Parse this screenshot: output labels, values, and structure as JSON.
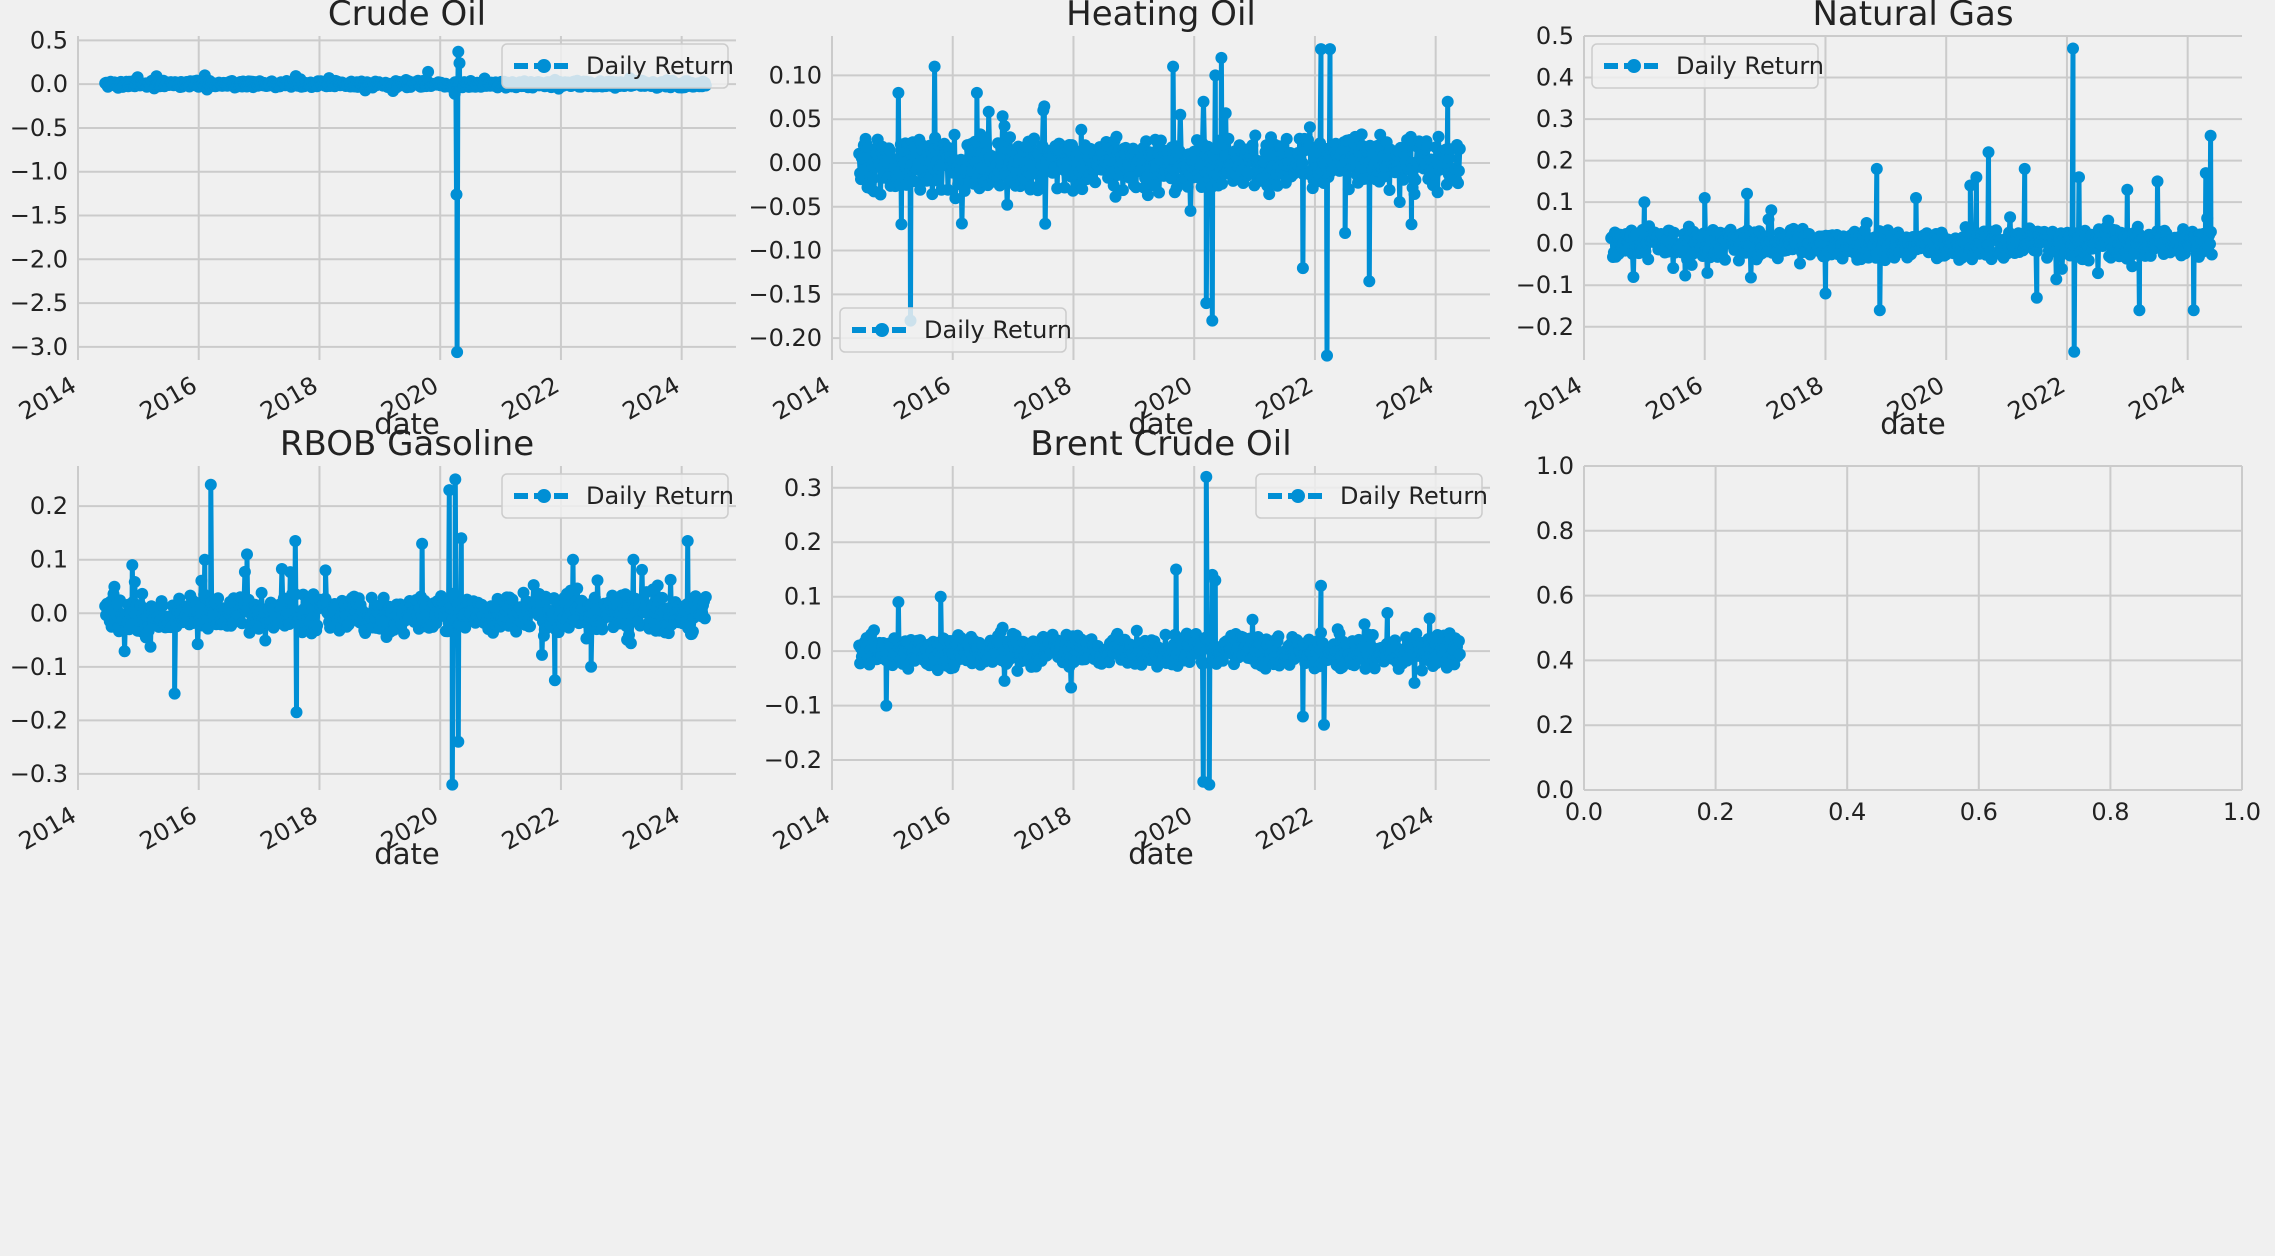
{
  "figure": {
    "background": "#f0f0f0",
    "series_color": "#008fd5"
  },
  "chart_data": [
    {
      "type": "line",
      "title": "Crude Oil",
      "xlabel": "date",
      "ylabel": "",
      "xlim": [
        2014,
        2024.9
      ],
      "xticks": [
        "2014",
        "2016",
        "2018",
        "2020",
        "2022",
        "2024"
      ],
      "ylim": [
        -3.15,
        0.55
      ],
      "yticks": [
        "0.5",
        "0.0",
        "−0.5",
        "−1.0",
        "−1.5",
        "−2.0",
        "−2.5",
        "−3.0"
      ],
      "legend": "top-right",
      "series": [
        {
          "name": "Daily Return",
          "x_start": 2014.45,
          "x_end": 2024.4,
          "amplitude": 0.03,
          "spikes": [
            [
              2020.28,
              -3.06
            ],
            [
              2020.3,
              0.37
            ],
            [
              2020.27,
              -1.26
            ],
            [
              2020.32,
              0.24
            ],
            [
              2020.24,
              -0.11
            ],
            [
              2019.8,
              0.14
            ],
            [
              2015.3,
              0.09
            ],
            [
              2016.1,
              0.1
            ]
          ]
        }
      ]
    },
    {
      "type": "line",
      "title": "Heating Oil",
      "xlabel": "date",
      "ylabel": "",
      "xlim": [
        2014,
        2024.9
      ],
      "xticks": [
        "2014",
        "2016",
        "2018",
        "2020",
        "2022",
        "2024"
      ],
      "ylim": [
        -0.225,
        0.145
      ],
      "yticks": [
        "0.10",
        "0.05",
        "0.00",
        "−0.05",
        "−0.10",
        "−0.15",
        "−0.20"
      ],
      "legend": "lower-left",
      "series": [
        {
          "name": "Daily Return",
          "x_start": 2014.45,
          "x_end": 2024.4,
          "amplitude": 0.025,
          "spikes": [
            [
              2015.3,
              -0.18
            ],
            [
              2015.15,
              -0.07
            ],
            [
              2015.1,
              0.08
            ],
            [
              2015.7,
              0.11
            ],
            [
              2016.4,
              0.08
            ],
            [
              2017.5,
              0.06
            ],
            [
              2019.65,
              0.11
            ],
            [
              2020.2,
              -0.16
            ],
            [
              2020.3,
              -0.18
            ],
            [
              2020.35,
              0.1
            ],
            [
              2020.45,
              0.12
            ],
            [
              2021.8,
              -0.12
            ],
            [
              2022.1,
              0.13
            ],
            [
              2022.2,
              -0.22
            ],
            [
              2022.25,
              0.13
            ],
            [
              2022.5,
              -0.08
            ],
            [
              2022.9,
              -0.135
            ],
            [
              2023.6,
              -0.07
            ],
            [
              2024.2,
              0.07
            ]
          ]
        }
      ]
    },
    {
      "type": "line",
      "title": "Natural Gas",
      "xlabel": "date",
      "ylabel": "",
      "xlim": [
        2014,
        2024.9
      ],
      "xticks": [
        "2014",
        "2016",
        "2018",
        "2020",
        "2022",
        "2024"
      ],
      "ylim": [
        -0.28,
        0.5
      ],
      "yticks": [
        "0.5",
        "0.4",
        "0.3",
        "0.2",
        "0.1",
        "0.0",
        "−0.1",
        "−0.2"
      ],
      "legend": "top-left",
      "series": [
        {
          "name": "Daily Return",
          "x_start": 2014.45,
          "x_end": 2024.4,
          "amplitude": 0.03,
          "spikes": [
            [
              2015.0,
              0.1
            ],
            [
              2016.0,
              0.11
            ],
            [
              2016.7,
              0.12
            ],
            [
              2018.0,
              -0.12
            ],
            [
              2018.85,
              0.18
            ],
            [
              2018.9,
              -0.16
            ],
            [
              2019.5,
              0.11
            ],
            [
              2020.4,
              0.14
            ],
            [
              2020.5,
              0.16
            ],
            [
              2020.7,
              0.22
            ],
            [
              2021.3,
              0.18
            ],
            [
              2021.5,
              -0.13
            ],
            [
              2022.1,
              0.47
            ],
            [
              2022.12,
              -0.26
            ],
            [
              2022.2,
              0.16
            ],
            [
              2023.0,
              0.13
            ],
            [
              2023.2,
              -0.16
            ],
            [
              2023.5,
              0.15
            ],
            [
              2024.1,
              -0.16
            ],
            [
              2024.3,
              0.17
            ],
            [
              2024.38,
              0.26
            ]
          ]
        }
      ]
    },
    {
      "type": "line",
      "title": "RBOB Gasoline",
      "xlabel": "date",
      "ylabel": "",
      "xlim": [
        2014,
        2024.9
      ],
      "xticks": [
        "2014",
        "2016",
        "2018",
        "2020",
        "2022",
        "2024"
      ],
      "ylim": [
        -0.33,
        0.275
      ],
      "yticks": [
        "0.2",
        "0.1",
        "0.0",
        "−0.1",
        "−0.2",
        "−0.3"
      ],
      "legend": "top-right",
      "series": [
        {
          "name": "Daily Return",
          "x_start": 2014.45,
          "x_end": 2024.4,
          "amplitude": 0.03,
          "spikes": [
            [
              2014.9,
              0.09
            ],
            [
              2015.6,
              -0.15
            ],
            [
              2016.1,
              0.1
            ],
            [
              2016.2,
              0.24
            ],
            [
              2016.8,
              0.11
            ],
            [
              2017.6,
              0.135
            ],
            [
              2017.62,
              -0.185
            ],
            [
              2018.1,
              0.08
            ],
            [
              2019.7,
              0.13
            ],
            [
              2020.15,
              0.23
            ],
            [
              2020.2,
              -0.32
            ],
            [
              2020.25,
              0.25
            ],
            [
              2020.3,
              -0.24
            ],
            [
              2020.35,
              0.14
            ],
            [
              2021.9,
              -0.125
            ],
            [
              2022.2,
              0.1
            ],
            [
              2022.5,
              -0.1
            ],
            [
              2023.2,
              0.1
            ],
            [
              2024.1,
              0.135
            ]
          ]
        }
      ]
    },
    {
      "type": "line",
      "title": "Brent Crude Oil",
      "xlabel": "date",
      "ylabel": "",
      "xlim": [
        2014,
        2024.9
      ],
      "xticks": [
        "2014",
        "2016",
        "2018",
        "2020",
        "2022",
        "2024"
      ],
      "ylim": [
        -0.255,
        0.34
      ],
      "yticks": [
        "0.3",
        "0.2",
        "0.1",
        "0.0",
        "−0.1",
        "−0.2"
      ],
      "legend": "top-right",
      "series": [
        {
          "name": "Daily Return",
          "x_start": 2014.45,
          "x_end": 2024.4,
          "amplitude": 0.025,
          "spikes": [
            [
              2014.9,
              -0.1
            ],
            [
              2015.1,
              0.09
            ],
            [
              2015.8,
              0.1
            ],
            [
              2019.7,
              0.15
            ],
            [
              2020.15,
              -0.24
            ],
            [
              2020.2,
              0.32
            ],
            [
              2020.25,
              -0.245
            ],
            [
              2020.3,
              0.14
            ],
            [
              2020.35,
              0.13
            ],
            [
              2021.8,
              -0.12
            ],
            [
              2022.1,
              0.12
            ],
            [
              2022.15,
              -0.135
            ],
            [
              2023.2,
              0.07
            ],
            [
              2023.9,
              0.06
            ]
          ]
        }
      ]
    },
    {
      "type": "line",
      "title": "",
      "xlabel": "",
      "ylabel": "",
      "xlim": [
        0.0,
        1.0
      ],
      "xticks": [
        "0.0",
        "0.2",
        "0.4",
        "0.6",
        "0.8",
        "1.0"
      ],
      "ylim": [
        0.0,
        1.0
      ],
      "yticks": [
        "1.0",
        "0.8",
        "0.6",
        "0.4",
        "0.2",
        "0.0"
      ],
      "legend": "none",
      "series": []
    }
  ]
}
